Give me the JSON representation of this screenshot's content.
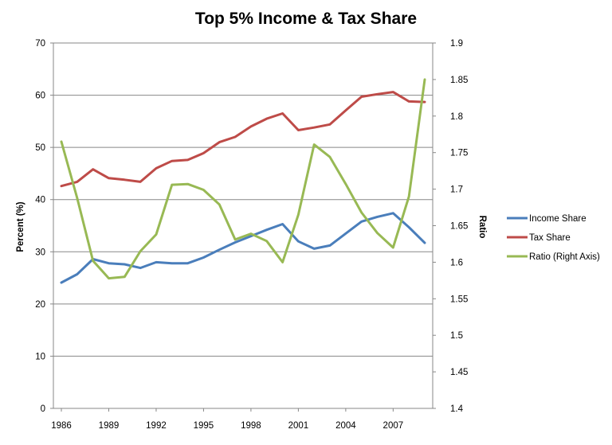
{
  "chart_data": {
    "type": "line",
    "title": "Top 5% Income & Tax Share",
    "ylabel": "Percent (%)",
    "y2label": "Ratio",
    "xlabel": "",
    "x": [
      1986,
      1987,
      1988,
      1989,
      1990,
      1991,
      1992,
      1993,
      1994,
      1995,
      1996,
      1997,
      1998,
      1999,
      2000,
      2001,
      2002,
      2003,
      2004,
      2005,
      2006,
      2007,
      2008,
      2009
    ],
    "x_ticks": [
      "1986",
      "1989",
      "1992",
      "1995",
      "1998",
      "2001",
      "2004",
      "2007"
    ],
    "x_tick_values": [
      1986,
      1989,
      1992,
      1995,
      1998,
      2001,
      2004,
      2007
    ],
    "ylim": [
      0,
      70
    ],
    "y_ticks": [
      "0",
      "10",
      "20",
      "30",
      "40",
      "50",
      "60",
      "70"
    ],
    "y_tick_values": [
      0,
      10,
      20,
      30,
      40,
      50,
      60,
      70
    ],
    "y2lim": [
      1.4,
      1.9
    ],
    "y2_ticks": [
      "1.4",
      "1.45",
      "1.5",
      "1.55",
      "1.6",
      "1.65",
      "1.7",
      "1.75",
      "1.8",
      "1.85",
      "1.9"
    ],
    "y2_tick_values": [
      1.4,
      1.45,
      1.5,
      1.55,
      1.6,
      1.65,
      1.7,
      1.75,
      1.8,
      1.85,
      1.9
    ],
    "grid": "horizontal",
    "legend_position": "right",
    "series": [
      {
        "name": "Income Share",
        "axis": "left",
        "color": "#4a7ebb",
        "values": [
          24.1,
          25.7,
          28.6,
          27.8,
          27.6,
          26.9,
          28.0,
          27.8,
          27.8,
          28.9,
          30.4,
          31.8,
          33.0,
          34.2,
          35.3,
          32.0,
          30.6,
          31.2,
          33.5,
          35.8,
          36.7,
          37.4,
          34.7,
          31.7
        ]
      },
      {
        "name": "Tax Share",
        "axis": "left",
        "color": "#be4b48",
        "values": [
          42.6,
          43.4,
          45.8,
          44.1,
          43.8,
          43.4,
          46.0,
          47.4,
          47.6,
          48.9,
          51.0,
          52.0,
          54.0,
          55.5,
          56.5,
          53.3,
          53.8,
          54.4,
          57.1,
          59.7,
          60.2,
          60.6,
          58.8,
          58.7
        ]
      },
      {
        "name": "Ratio (Right Axis)",
        "axis": "right",
        "color": "#98b954",
        "values": [
          1.765,
          1.688,
          1.602,
          1.578,
          1.58,
          1.615,
          1.638,
          1.706,
          1.707,
          1.699,
          1.679,
          1.631,
          1.639,
          1.629,
          1.6,
          1.665,
          1.761,
          1.744,
          1.707,
          1.668,
          1.64,
          1.62,
          1.69,
          1.85
        ]
      }
    ]
  }
}
